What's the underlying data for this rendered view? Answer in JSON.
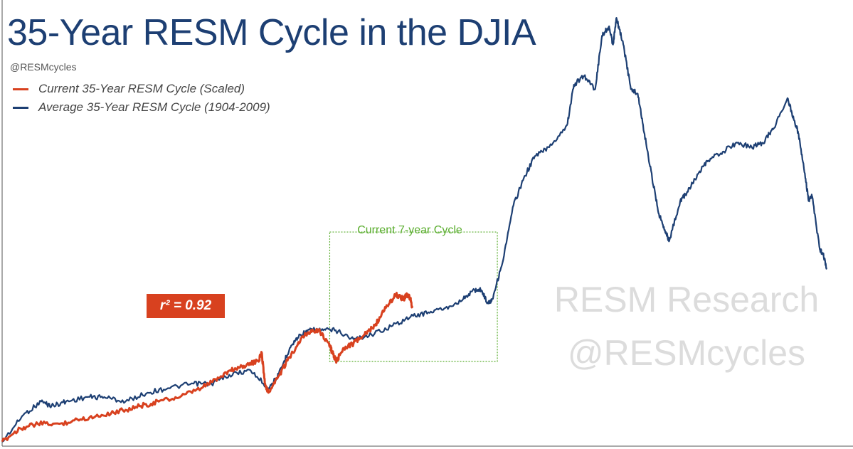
{
  "header": {
    "title": "35-Year RESM Cycle in the DJIA",
    "handle": "@RESMcycles"
  },
  "legend": {
    "items": [
      {
        "label": "Current 35-Year RESM Cycle (Scaled)",
        "color": "#d8411f"
      },
      {
        "label": "Average 35-Year RESM Cycle (1904-2009)",
        "color": "#1d3f73"
      }
    ]
  },
  "annotations": {
    "r2_label": "r² = 0.92",
    "box_label": "Current 7-year Cycle",
    "box_color": "#5aad2e"
  },
  "watermark": {
    "line1": "RESM Research",
    "line2": "@RESMcycles"
  },
  "chart_data": {
    "type": "line",
    "title": "35-Year RESM Cycle in the DJIA",
    "xlabel": "",
    "ylabel": "",
    "grid": false,
    "legend_position": "top-left",
    "x_range": [
      0,
      100
    ],
    "y_range": [
      0,
      100
    ],
    "highlight_box": {
      "label": "Current 7-year Cycle",
      "x_range": [
        38.5,
        58.2
      ],
      "y_range": [
        19,
        48
      ]
    },
    "series": [
      {
        "name": "Average 35-Year RESM Cycle (1904-2009)",
        "color": "#1d3f73",
        "x": [
          0,
          2.5,
          4.6,
          5.8,
          7.5,
          10,
          12,
          14.5,
          17.1,
          19.5,
          22.5,
          24.6,
          26.7,
          29.2,
          31.3,
          32.5,
          33.8,
          35,
          36.3,
          37.5,
          39.2,
          41.3,
          43.4,
          45.9,
          48,
          50.1,
          52.1,
          54.2,
          55.5,
          56.3,
          57.1,
          57.6,
          58.8,
          60.1,
          61.3,
          62.6,
          64.3,
          66.4,
          67.2,
          68.4,
          69.7,
          70.5,
          71.3,
          71.8,
          72.2,
          73,
          73.9,
          74.7,
          75.5,
          76.4,
          77.2,
          78,
          78.4,
          79.7,
          80.5,
          81.8,
          83,
          84.7,
          86.4,
          88.1,
          89.4,
          90.6,
          92.3,
          93.1,
          93.6,
          94.4,
          94.8,
          95.2,
          96.1,
          96.5,
          96.9
        ],
        "y": [
          1,
          7,
          10,
          9,
          10,
          11,
          11,
          10,
          12,
          13,
          14,
          14,
          16,
          17,
          13,
          16,
          22,
          25,
          26,
          26,
          26,
          24,
          25,
          27,
          29,
          30,
          31,
          33,
          35,
          35,
          32,
          33,
          41,
          54,
          60,
          65,
          67,
          72,
          81,
          83,
          80,
          92,
          94,
          90,
          96,
          90,
          80,
          79,
          70,
          60,
          52,
          48,
          46,
          55,
          57,
          61,
          64,
          66,
          68,
          67,
          68,
          71,
          78,
          73,
          70,
          60,
          55,
          56,
          44,
          43,
          40
        ]
      },
      {
        "name": "Current 35-Year RESM Cycle (Scaled)",
        "color": "#d8411f",
        "x": [
          0,
          2.1,
          4.2,
          6.7,
          9.2,
          11.7,
          14.2,
          16.3,
          18.4,
          20.9,
          23.4,
          25.1,
          26.8,
          28.4,
          30.1,
          30.5,
          30.9,
          31.3,
          32.6,
          33.8,
          35.1,
          36.3,
          37.2,
          38.4,
          38.8,
          39.3,
          40.1,
          41.3,
          42.6,
          43.8,
          45.1,
          46.3,
          47.2,
          47.6,
          48,
          48.2
        ],
        "y": [
          1,
          4,
          5,
          5,
          6,
          7,
          8,
          9,
          10,
          11,
          13,
          15,
          17,
          18,
          19,
          21,
          14,
          12,
          16,
          20,
          24,
          26,
          26,
          23,
          21,
          19,
          22,
          23,
          25,
          27,
          31,
          34,
          33,
          34,
          33,
          31
        ]
      }
    ]
  }
}
